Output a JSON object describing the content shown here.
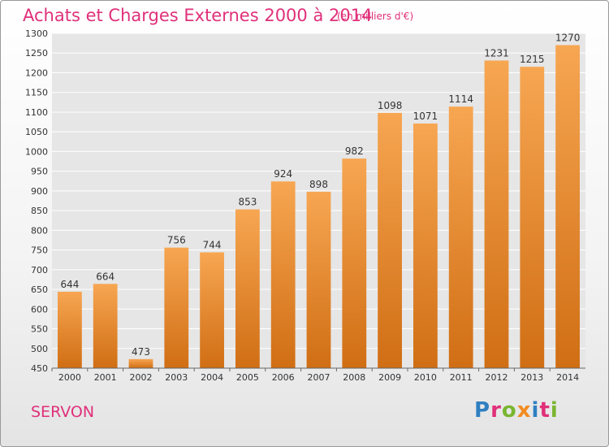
{
  "header": {
    "title": "Achats et Charges Externes 2000 à 2014",
    "subtitle": "(en milliers d'€)"
  },
  "footer": {
    "commune": "SERVON",
    "logo_text": "Proxiti"
  },
  "colors": {
    "title": "#e0307a",
    "bar_top": "#f7a652",
    "bar_bottom": "#d06e14",
    "plot_bg": "#e6e6e6",
    "grid": "#ffffff",
    "logo": [
      "#2f7fc1",
      "#e0307a",
      "#7ab530",
      "#f28b20",
      "#2f7fc1",
      "#e0307a",
      "#7ab530"
    ]
  },
  "chart_data": {
    "type": "bar",
    "title": "Achats et Charges Externes 2000 à 2014",
    "xlabel": "",
    "ylabel": "",
    "categories": [
      "2000",
      "2001",
      "2002",
      "2003",
      "2004",
      "2005",
      "2006",
      "2007",
      "2008",
      "2009",
      "2010",
      "2011",
      "2012",
      "2013",
      "2014"
    ],
    "values": [
      644,
      664,
      473,
      756,
      744,
      853,
      924,
      898,
      982,
      1098,
      1071,
      1114,
      1231,
      1215,
      1270
    ],
    "ylim": [
      450,
      1300
    ],
    "yticks": [
      450,
      500,
      550,
      600,
      650,
      700,
      750,
      800,
      850,
      900,
      950,
      1000,
      1050,
      1100,
      1150,
      1200,
      1250,
      1300
    ],
    "grid": true,
    "legend": "none"
  }
}
